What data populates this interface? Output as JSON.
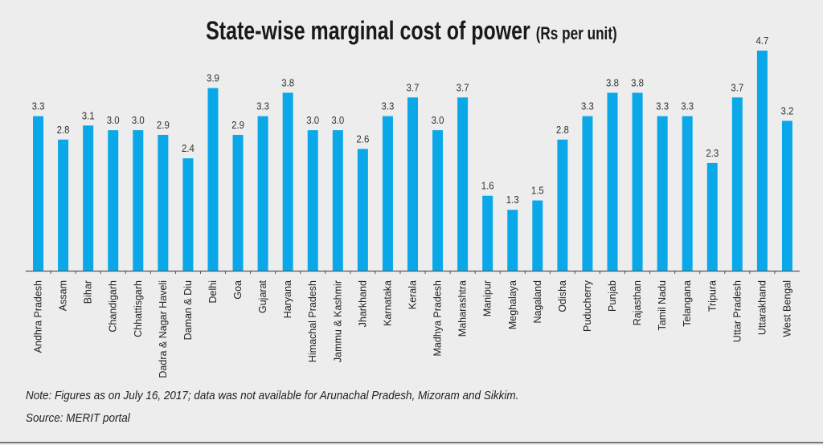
{
  "chart_data": {
    "type": "bar",
    "title": "State-wise marginal cost of power",
    "title_unit": "(Rs per unit)",
    "xlabel": "",
    "ylabel": "",
    "ylim": [
      0,
      4.7
    ],
    "grid": false,
    "bar_color": "#0aa8e8",
    "categories": [
      "Andhra Pradesh",
      "Assam",
      "Bihar",
      "Chandigarh",
      "Chhattisgarh",
      "Dadra & Nagar Haveli",
      "Daman & Diu",
      "Delhi",
      "Goa",
      "Gujarat",
      "Haryana",
      "Himachal Pradesh",
      "Jammu & Kashmir",
      "Jharkhand",
      "Karnataka",
      "Kerala",
      "Madhya Pradesh",
      "Maharashtra",
      "Manipur",
      "Meghalaya",
      "Nagaland",
      "Odisha",
      "Puducherry",
      "Punjab",
      "Rajasthan",
      "Tamil Nadu",
      "Telangana",
      "Tripura",
      "Uttar Pradesh",
      "Uttarakhand",
      "West Bengal"
    ],
    "values": [
      3.3,
      2.8,
      3.1,
      3.0,
      3.0,
      2.9,
      2.4,
      3.9,
      2.9,
      3.3,
      3.8,
      3.0,
      3.0,
      2.6,
      3.3,
      3.7,
      3.0,
      3.7,
      1.6,
      1.3,
      1.5,
      2.8,
      3.3,
      3.8,
      3.8,
      3.3,
      3.3,
      2.3,
      3.7,
      4.7,
      3.2
    ],
    "value_labels": [
      "3.3",
      "2.8",
      "3.1",
      "3.0",
      "3.0",
      "2.9",
      "2.4",
      "3.9",
      "2.9",
      "3.3",
      "3.8",
      "3.0",
      "3.0",
      "2.6",
      "3.3",
      "3.7",
      "3.0",
      "3.7",
      "1.6",
      "1.3",
      "1.5",
      "2.8",
      "3.3",
      "3.8",
      "3.8",
      "3.3",
      "3.3",
      "2.3",
      "3.7",
      "4.7",
      "3.2"
    ]
  },
  "footer": {
    "note": "Note: Figures as on July 16, 2017; data was not available for Arunachal Pradesh, Mizoram and Sikkim.",
    "source": "Source: MERIT portal"
  }
}
